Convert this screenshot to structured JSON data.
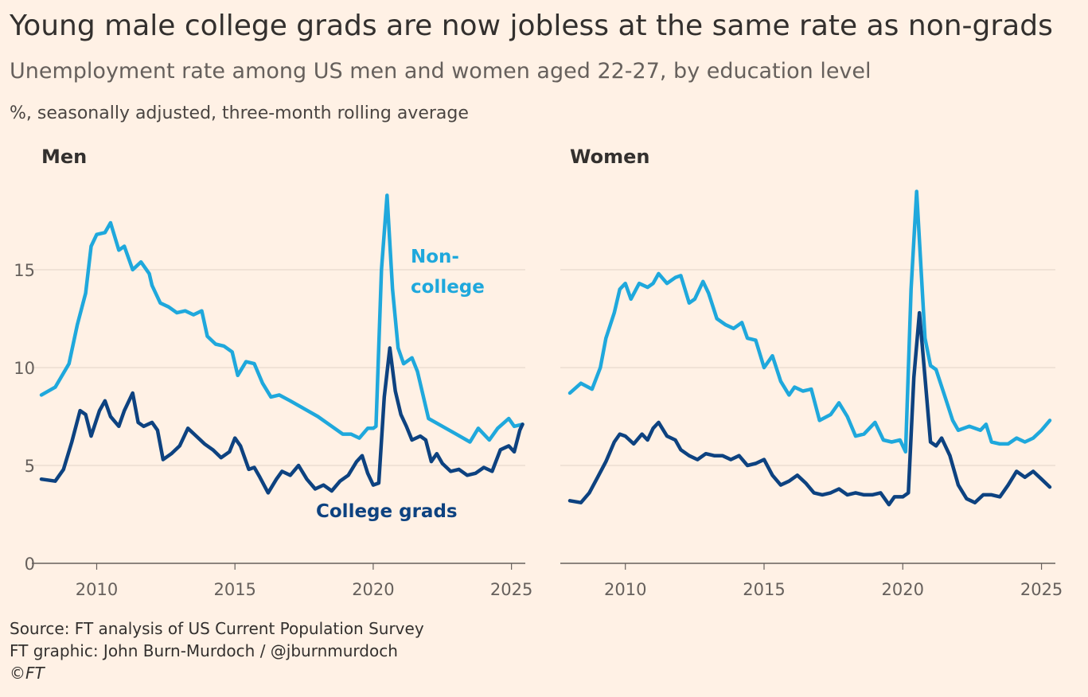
{
  "title": "Young male college grads are now jobless at the same rate as non-grads",
  "subtitle": "Unemployment rate among US men and women aged 22-27, by education level",
  "units": "%, seasonally adjusted, three-month rolling average",
  "footer": {
    "source": "Source: FT analysis of US Current Population Survey",
    "graphic": "FT graphic: John Burn-Murdoch / @jburnmurdoch",
    "copyright": "©FT"
  },
  "colors": {
    "non_college": "#1fa8dc",
    "college": "#0d4280",
    "grid": "#e6d9ce",
    "axis": "#66605c"
  },
  "chart_data": [
    {
      "type": "line",
      "title": "Men",
      "ylabel": "%",
      "xlim": [
        2008,
        2025.5
      ],
      "ylim": [
        0,
        19
      ],
      "yticks": [
        0,
        5,
        10,
        15
      ],
      "xticks": [
        2010,
        2015,
        2020,
        2025
      ],
      "label_offsets": {
        "Non-college": [
          2020.7,
          15.4
        ],
        "college_label_xy": [
          2017.3,
          2.4
        ]
      },
      "series": [
        {
          "name": "Non-college",
          "label": [
            "Non-",
            "college"
          ],
          "points": [
            [
              2008,
              8.6
            ],
            [
              2008.5,
              9.0
            ],
            [
              2009,
              10.2
            ],
            [
              2009.3,
              12.2
            ],
            [
              2009.6,
              13.8
            ],
            [
              2009.8,
              16.2
            ],
            [
              2010,
              16.8
            ],
            [
              2010.3,
              16.9
            ],
            [
              2010.5,
              17.4
            ],
            [
              2010.8,
              16.0
            ],
            [
              2011,
              16.2
            ],
            [
              2011.3,
              15.0
            ],
            [
              2011.6,
              15.4
            ],
            [
              2011.9,
              14.8
            ],
            [
              2012,
              14.2
            ],
            [
              2012.3,
              13.3
            ],
            [
              2012.6,
              13.1
            ],
            [
              2012.9,
              12.8
            ],
            [
              2013.2,
              12.9
            ],
            [
              2013.5,
              12.7
            ],
            [
              2013.8,
              12.9
            ],
            [
              2014,
              11.6
            ],
            [
              2014.3,
              11.2
            ],
            [
              2014.6,
              11.1
            ],
            [
              2014.9,
              10.8
            ],
            [
              2015.1,
              9.6
            ],
            [
              2015.4,
              10.3
            ],
            [
              2015.7,
              10.2
            ],
            [
              2016,
              9.2
            ],
            [
              2016.3,
              8.5
            ],
            [
              2016.6,
              8.6
            ],
            [
              2017,
              8.3
            ],
            [
              2017.5,
              7.9
            ],
            [
              2018,
              7.5
            ],
            [
              2018.5,
              7.0
            ],
            [
              2018.9,
              6.6
            ],
            [
              2019.2,
              6.6
            ],
            [
              2019.5,
              6.4
            ],
            [
              2019.8,
              6.9
            ],
            [
              2020,
              6.9
            ],
            [
              2020.1,
              7.0
            ],
            [
              2020.3,
              15.0
            ],
            [
              2020.5,
              18.8
            ],
            [
              2020.7,
              14.0
            ],
            [
              2020.9,
              11.0
            ],
            [
              2021.1,
              10.2
            ],
            [
              2021.4,
              10.5
            ],
            [
              2021.6,
              9.8
            ],
            [
              2022,
              7.4
            ],
            [
              2022.5,
              7.0
            ],
            [
              2023,
              6.6
            ],
            [
              2023.5,
              6.2
            ],
            [
              2023.8,
              6.9
            ],
            [
              2024.2,
              6.3
            ],
            [
              2024.5,
              6.9
            ],
            [
              2024.9,
              7.4
            ],
            [
              2025.1,
              7.0
            ],
            [
              2025.4,
              7.1
            ]
          ]
        },
        {
          "name": "College grads",
          "label": [
            "College grads"
          ],
          "points": [
            [
              2008,
              4.3
            ],
            [
              2008.5,
              4.2
            ],
            [
              2008.8,
              4.8
            ],
            [
              2009.1,
              6.2
            ],
            [
              2009.4,
              7.8
            ],
            [
              2009.6,
              7.6
            ],
            [
              2009.8,
              6.5
            ],
            [
              2010.1,
              7.8
            ],
            [
              2010.3,
              8.3
            ],
            [
              2010.5,
              7.5
            ],
            [
              2010.8,
              7.0
            ],
            [
              2011,
              7.8
            ],
            [
              2011.3,
              8.7
            ],
            [
              2011.5,
              7.2
            ],
            [
              2011.7,
              7.0
            ],
            [
              2012,
              7.2
            ],
            [
              2012.2,
              6.8
            ],
            [
              2012.4,
              5.3
            ],
            [
              2012.7,
              5.6
            ],
            [
              2013,
              6.0
            ],
            [
              2013.3,
              6.9
            ],
            [
              2013.6,
              6.5
            ],
            [
              2013.9,
              6.1
            ],
            [
              2014.2,
              5.8
            ],
            [
              2014.5,
              5.4
            ],
            [
              2014.8,
              5.7
            ],
            [
              2015,
              6.4
            ],
            [
              2015.2,
              6.0
            ],
            [
              2015.5,
              4.8
            ],
            [
              2015.7,
              4.9
            ],
            [
              2015.9,
              4.4
            ],
            [
              2016.2,
              3.6
            ],
            [
              2016.5,
              4.3
            ],
            [
              2016.7,
              4.7
            ],
            [
              2017,
              4.5
            ],
            [
              2017.3,
              5.0
            ],
            [
              2017.6,
              4.3
            ],
            [
              2017.9,
              3.8
            ],
            [
              2018.2,
              4.0
            ],
            [
              2018.5,
              3.7
            ],
            [
              2018.8,
              4.2
            ],
            [
              2019.1,
              4.5
            ],
            [
              2019.4,
              5.2
            ],
            [
              2019.6,
              5.5
            ],
            [
              2019.8,
              4.6
            ],
            [
              2020,
              4.0
            ],
            [
              2020.2,
              4.1
            ],
            [
              2020.4,
              8.5
            ],
            [
              2020.6,
              11.0
            ],
            [
              2020.8,
              8.8
            ],
            [
              2021,
              7.6
            ],
            [
              2021.2,
              7.0
            ],
            [
              2021.4,
              6.3
            ],
            [
              2021.7,
              6.5
            ],
            [
              2021.9,
              6.3
            ],
            [
              2022.1,
              5.2
            ],
            [
              2022.3,
              5.6
            ],
            [
              2022.5,
              5.1
            ],
            [
              2022.8,
              4.7
            ],
            [
              2023.1,
              4.8
            ],
            [
              2023.4,
              4.5
            ],
            [
              2023.7,
              4.6
            ],
            [
              2024,
              4.9
            ],
            [
              2024.3,
              4.7
            ],
            [
              2024.6,
              5.8
            ],
            [
              2024.9,
              6.0
            ],
            [
              2025.1,
              5.7
            ],
            [
              2025.3,
              6.8
            ],
            [
              2025.4,
              7.1
            ]
          ]
        }
      ]
    },
    {
      "type": "line",
      "title": "Women",
      "ylabel": "%",
      "xlim": [
        2008,
        2025.5
      ],
      "ylim": [
        0,
        19
      ],
      "yticks": [
        0,
        5,
        10,
        15
      ],
      "xticks": [
        2010,
        2015,
        2020,
        2025
      ],
      "series": [
        {
          "name": "Non-college",
          "points": [
            [
              2008,
              8.7
            ],
            [
              2008.4,
              9.2
            ],
            [
              2008.8,
              8.9
            ],
            [
              2009.1,
              10.0
            ],
            [
              2009.3,
              11.5
            ],
            [
              2009.6,
              12.8
            ],
            [
              2009.8,
              14.0
            ],
            [
              2010,
              14.3
            ],
            [
              2010.2,
              13.5
            ],
            [
              2010.5,
              14.3
            ],
            [
              2010.8,
              14.1
            ],
            [
              2011,
              14.3
            ],
            [
              2011.2,
              14.8
            ],
            [
              2011.5,
              14.3
            ],
            [
              2011.8,
              14.6
            ],
            [
              2012,
              14.7
            ],
            [
              2012.3,
              13.3
            ],
            [
              2012.5,
              13.5
            ],
            [
              2012.8,
              14.4
            ],
            [
              2013,
              13.8
            ],
            [
              2013.3,
              12.5
            ],
            [
              2013.6,
              12.2
            ],
            [
              2013.9,
              12.0
            ],
            [
              2014.2,
              12.3
            ],
            [
              2014.4,
              11.5
            ],
            [
              2014.7,
              11.4
            ],
            [
              2015,
              10.0
            ],
            [
              2015.3,
              10.6
            ],
            [
              2015.6,
              9.3
            ],
            [
              2015.9,
              8.6
            ],
            [
              2016.1,
              9.0
            ],
            [
              2016.4,
              8.8
            ],
            [
              2016.7,
              8.9
            ],
            [
              2017,
              7.3
            ],
            [
              2017.4,
              7.6
            ],
            [
              2017.7,
              8.2
            ],
            [
              2018,
              7.5
            ],
            [
              2018.3,
              6.5
            ],
            [
              2018.6,
              6.6
            ],
            [
              2019,
              7.2
            ],
            [
              2019.3,
              6.3
            ],
            [
              2019.6,
              6.2
            ],
            [
              2019.9,
              6.3
            ],
            [
              2020.1,
              5.7
            ],
            [
              2020.3,
              14.0
            ],
            [
              2020.5,
              19.0
            ],
            [
              2020.8,
              11.5
            ],
            [
              2021,
              10.1
            ],
            [
              2021.2,
              9.9
            ],
            [
              2021.5,
              8.6
            ],
            [
              2021.8,
              7.3
            ],
            [
              2022,
              6.8
            ],
            [
              2022.4,
              7.0
            ],
            [
              2022.8,
              6.8
            ],
            [
              2023,
              7.1
            ],
            [
              2023.2,
              6.2
            ],
            [
              2023.5,
              6.1
            ],
            [
              2023.8,
              6.1
            ],
            [
              2024.1,
              6.4
            ],
            [
              2024.4,
              6.2
            ],
            [
              2024.7,
              6.4
            ],
            [
              2025,
              6.8
            ],
            [
              2025.3,
              7.3
            ]
          ]
        },
        {
          "name": "College grads",
          "points": [
            [
              2008,
              3.2
            ],
            [
              2008.4,
              3.1
            ],
            [
              2008.7,
              3.6
            ],
            [
              2009,
              4.4
            ],
            [
              2009.3,
              5.2
            ],
            [
              2009.6,
              6.2
            ],
            [
              2009.8,
              6.6
            ],
            [
              2010,
              6.5
            ],
            [
              2010.3,
              6.1
            ],
            [
              2010.6,
              6.6
            ],
            [
              2010.8,
              6.3
            ],
            [
              2011,
              6.9
            ],
            [
              2011.2,
              7.2
            ],
            [
              2011.5,
              6.5
            ],
            [
              2011.8,
              6.3
            ],
            [
              2012,
              5.8
            ],
            [
              2012.3,
              5.5
            ],
            [
              2012.6,
              5.3
            ],
            [
              2012.9,
              5.6
            ],
            [
              2013.2,
              5.5
            ],
            [
              2013.5,
              5.5
            ],
            [
              2013.8,
              5.3
            ],
            [
              2014.1,
              5.5
            ],
            [
              2014.4,
              5.0
            ],
            [
              2014.7,
              5.1
            ],
            [
              2015,
              5.3
            ],
            [
              2015.3,
              4.5
            ],
            [
              2015.6,
              4.0
            ],
            [
              2015.9,
              4.2
            ],
            [
              2016.2,
              4.5
            ],
            [
              2016.5,
              4.1
            ],
            [
              2016.8,
              3.6
            ],
            [
              2017.1,
              3.5
            ],
            [
              2017.4,
              3.6
            ],
            [
              2017.7,
              3.8
            ],
            [
              2018,
              3.5
            ],
            [
              2018.3,
              3.6
            ],
            [
              2018.6,
              3.5
            ],
            [
              2018.9,
              3.5
            ],
            [
              2019.2,
              3.6
            ],
            [
              2019.5,
              3.0
            ],
            [
              2019.7,
              3.4
            ],
            [
              2020,
              3.4
            ],
            [
              2020.2,
              3.6
            ],
            [
              2020.4,
              9.5
            ],
            [
              2020.6,
              12.8
            ],
            [
              2020.8,
              9.5
            ],
            [
              2021,
              6.2
            ],
            [
              2021.2,
              6.0
            ],
            [
              2021.4,
              6.4
            ],
            [
              2021.7,
              5.5
            ],
            [
              2022,
              4.0
            ],
            [
              2022.3,
              3.3
            ],
            [
              2022.6,
              3.1
            ],
            [
              2022.9,
              3.5
            ],
            [
              2023.2,
              3.5
            ],
            [
              2023.5,
              3.4
            ],
            [
              2023.8,
              4.0
            ],
            [
              2024.1,
              4.7
            ],
            [
              2024.4,
              4.4
            ],
            [
              2024.7,
              4.7
            ],
            [
              2025,
              4.3
            ],
            [
              2025.3,
              3.9
            ]
          ]
        }
      ]
    }
  ]
}
